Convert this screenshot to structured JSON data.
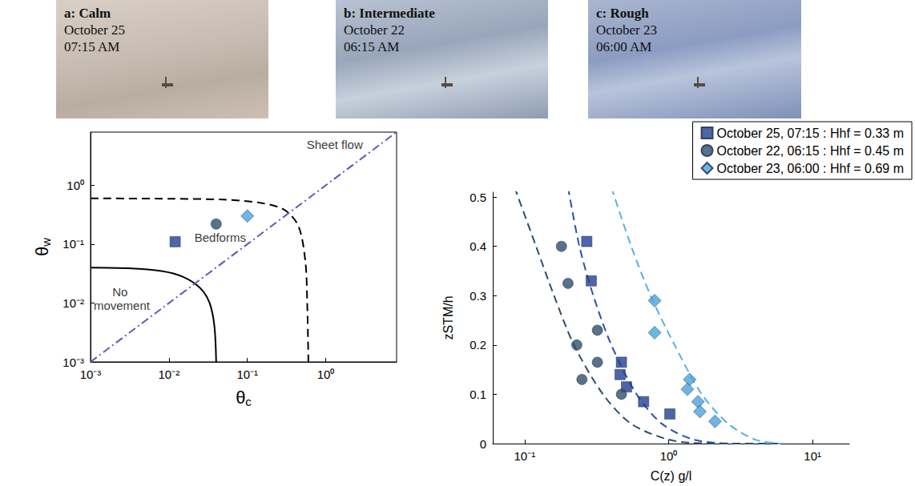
{
  "panels": [
    {
      "title": "a: Calm",
      "date": "October 25",
      "time": "07:15 AM"
    },
    {
      "title": "b: Intermediate",
      "date": "October 22",
      "time": "06:15 AM"
    },
    {
      "title": "c: Rough",
      "date": "October 23",
      "time": "06:00 AM"
    }
  ],
  "chart_data": [
    {
      "type": "scatter",
      "xlabel": "θc",
      "ylabel": "θw",
      "log": true,
      "grid": false,
      "xlim": [
        0.001,
        8
      ],
      "ylim": [
        0.001,
        8
      ],
      "xticks": [
        {
          "value": 0.001,
          "label": "10⁻³"
        },
        {
          "value": 0.01,
          "label": "10⁻²"
        },
        {
          "value": 0.1,
          "label": "10⁻¹"
        },
        {
          "value": 1,
          "label": "10⁰"
        }
      ],
      "yticks": [
        {
          "value": 0.001,
          "label": "10⁻³"
        },
        {
          "value": 0.01,
          "label": "10⁻²"
        },
        {
          "value": 0.1,
          "label": "10⁻¹"
        },
        {
          "value": 1,
          "label": "10⁰"
        }
      ],
      "series": [
        {
          "color": "#233f94",
          "marker": "square",
          "x": [
            0.012
          ],
          "values": [
            0.11
          ]
        },
        {
          "color": "#2f4d6e",
          "marker": "circle",
          "x": [
            0.04
          ],
          "values": [
            0.22
          ]
        },
        {
          "color": "#4aa3df",
          "marker": "diamond",
          "x": [
            0.1
          ],
          "values": [
            0.3
          ]
        }
      ],
      "curves": [
        {
          "type": "line",
          "line_style": "solid",
          "color": "#000000",
          "x": [
            0.001,
            0.003,
            0.008,
            0.015,
            0.025,
            0.033,
            0.038,
            0.04
          ],
          "values": [
            0.04,
            0.039,
            0.035,
            0.028,
            0.018,
            0.01,
            0.004,
            0.001
          ]
        },
        {
          "type": "line",
          "line_style": "dashed",
          "color": "#000000",
          "x": [
            0.001,
            0.01,
            0.05,
            0.15,
            0.3,
            0.45,
            0.55,
            0.58,
            0.6
          ],
          "values": [
            0.6,
            0.59,
            0.57,
            0.5,
            0.38,
            0.2,
            0.05,
            0.01,
            0.001
          ]
        },
        {
          "type": "line",
          "line_style": "dashdot",
          "color": "#5a5ab8",
          "x": [
            0.001,
            8
          ],
          "values": [
            0.001,
            8
          ]
        }
      ],
      "annotations": [
        {
          "text": "Sheet flow",
          "x": 1.3,
          "y": 5
        },
        {
          "text": "Bedforms",
          "x": 0.045,
          "y": 0.13
        },
        {
          "text": "No movement",
          "x": 0.0025,
          "y": 0.012
        }
      ]
    },
    {
      "type": "scatter",
      "xlabel": "C(z) g/l",
      "ylabel": "zSTM/h",
      "log": "x",
      "grid": false,
      "legend": "top-right",
      "xlim": [
        0.06,
        18
      ],
      "ylim": [
        0,
        0.51
      ],
      "xticks": [
        {
          "value": 0.1,
          "label": "10⁻¹"
        },
        {
          "value": 1,
          "label": "10⁰"
        },
        {
          "value": 10,
          "label": "10¹"
        }
      ],
      "yticks": [
        0,
        0.1,
        0.2,
        0.3,
        0.4,
        0.5
      ],
      "series": [
        {
          "name": "October 25, 07:15 : Hhf = 0.33 m",
          "color": "#233f94",
          "marker": "square",
          "x": [
            0.27,
            0.29,
            0.47,
            0.46,
            0.51,
            0.67,
            1.02
          ],
          "values": [
            0.41,
            0.33,
            0.165,
            0.14,
            0.115,
            0.085,
            0.06
          ]
        },
        {
          "name": "October 22, 06:15 : Hhf = 0.45 m",
          "color": "#2f4d6e",
          "marker": "circle",
          "x": [
            0.18,
            0.2,
            0.23,
            0.25,
            0.32,
            0.32,
            0.47
          ],
          "values": [
            0.4,
            0.325,
            0.2,
            0.13,
            0.23,
            0.165,
            0.1
          ]
        },
        {
          "name": "October 23, 06:00 : Hhf = 0.69 m",
          "color": "#4aa3df",
          "marker": "diamond",
          "x": [
            0.8,
            0.8,
            1.4,
            1.35,
            1.6,
            1.65,
            2.1
          ],
          "values": [
            0.29,
            0.225,
            0.13,
            0.11,
            0.085,
            0.065,
            0.045
          ]
        }
      ],
      "fits": [
        {
          "type": "line",
          "line_style": "dashed",
          "color": "#2a52a8",
          "x": [
            0.2,
            0.24,
            0.3,
            0.4,
            0.6,
            0.9,
            1.5,
            3,
            6
          ],
          "values": [
            0.52,
            0.4,
            0.3,
            0.2,
            0.1,
            0.04,
            0.008,
            0,
            0
          ]
        },
        {
          "type": "line",
          "line_style": "dashed",
          "color": "#2f4d6e",
          "x": [
            0.085,
            0.12,
            0.16,
            0.22,
            0.35,
            0.55,
            1.0,
            1.6,
            3,
            6
          ],
          "values": [
            0.52,
            0.4,
            0.3,
            0.2,
            0.1,
            0.04,
            0.008,
            0.001,
            0,
            0
          ]
        },
        {
          "type": "line",
          "line_style": "dashed",
          "color": "#56b0e6",
          "x": [
            0.4,
            0.55,
            0.75,
            1.1,
            1.7,
            2.6,
            4,
            6
          ],
          "values": [
            0.52,
            0.4,
            0.3,
            0.2,
            0.1,
            0.04,
            0.008,
            0
          ]
        }
      ]
    }
  ]
}
